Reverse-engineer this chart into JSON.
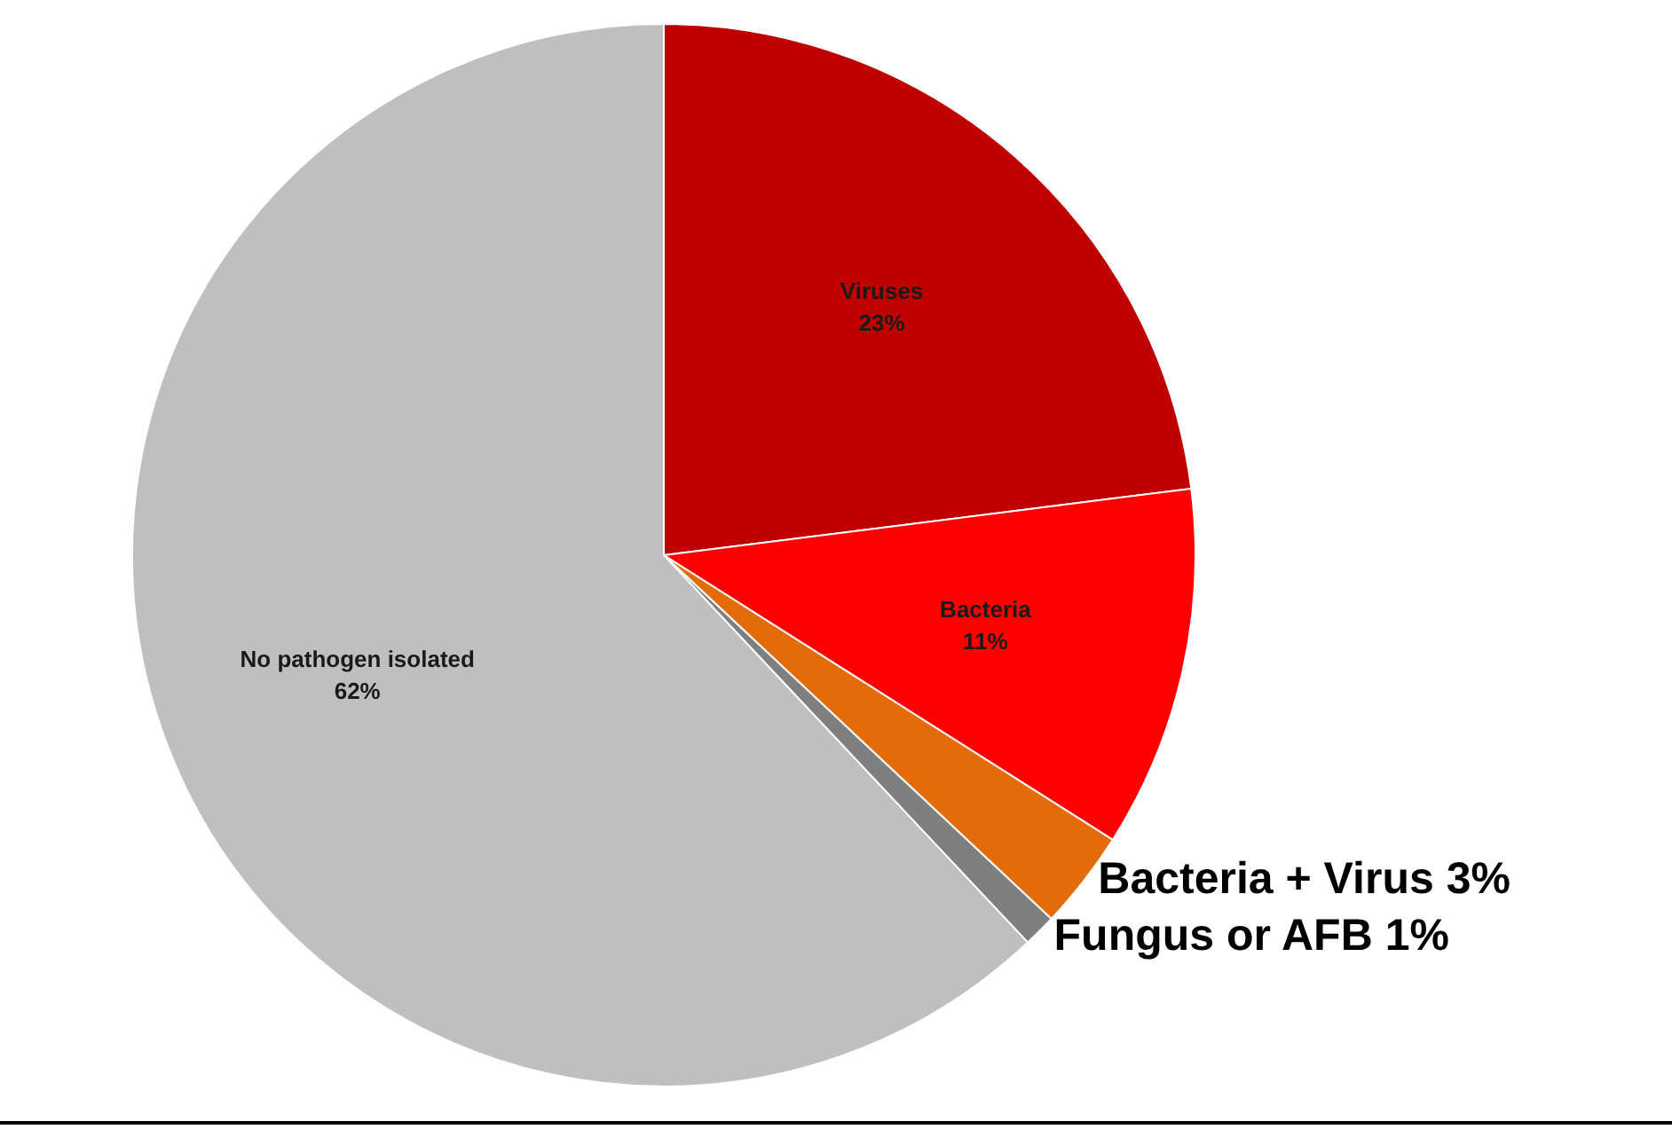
{
  "chart_data": {
    "type": "pie",
    "categories": [
      "Viruses",
      "Bacteria",
      "Bacteria + Virus",
      "Fungus or AFB",
      "No pathogen isolated"
    ],
    "values": [
      23,
      11,
      3,
      1,
      62
    ],
    "colors": [
      "#c00000",
      "#ff0000",
      "#e36c09",
      "#7f7f7f",
      "#bfbfbf"
    ],
    "data_labels": true,
    "value_labels": [
      "23%",
      "11%",
      "3%",
      "1%",
      "62%"
    ],
    "legend": false
  }
}
